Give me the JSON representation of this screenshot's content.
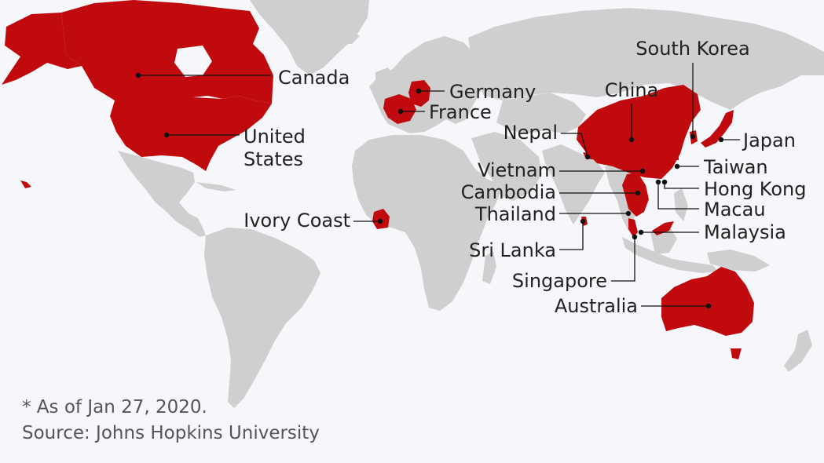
{
  "colors": {
    "background": "#f5f7fa",
    "land": "#cfcfcf",
    "affected": "#c00a0d",
    "leader": "#111111",
    "label_text": "#222222",
    "footnote_text": "#555555"
  },
  "countries": [
    {
      "id": "canada",
      "label": "Canada"
    },
    {
      "id": "united-states",
      "label": "United States",
      "lines": [
        "United",
        "States"
      ]
    },
    {
      "id": "germany",
      "label": "Germany"
    },
    {
      "id": "france",
      "label": "France"
    },
    {
      "id": "ivory-coast",
      "label": "Ivory Coast"
    },
    {
      "id": "china",
      "label": "China"
    },
    {
      "id": "south-korea",
      "label": "South Korea"
    },
    {
      "id": "nepal",
      "label": "Nepal"
    },
    {
      "id": "japan",
      "label": "Japan"
    },
    {
      "id": "vietnam",
      "label": "Vietnam"
    },
    {
      "id": "taiwan",
      "label": "Taiwan"
    },
    {
      "id": "cambodia",
      "label": "Cambodia"
    },
    {
      "id": "hong-kong",
      "label": "Hong Kong"
    },
    {
      "id": "thailand",
      "label": "Thailand"
    },
    {
      "id": "macau",
      "label": "Macau"
    },
    {
      "id": "malaysia",
      "label": "Malaysia"
    },
    {
      "id": "sri-lanka",
      "label": "Sri Lanka"
    },
    {
      "id": "singapore",
      "label": "Singapore"
    },
    {
      "id": "australia",
      "label": "Australia"
    }
  ],
  "footnote": {
    "note": "* As of Jan 27, 2020.",
    "source": "Source: Johns Hopkins University"
  }
}
